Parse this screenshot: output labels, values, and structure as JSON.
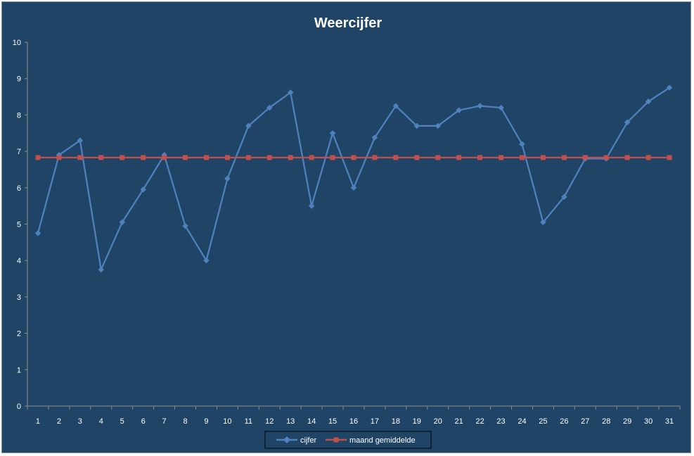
{
  "chart_data": {
    "type": "line",
    "title": "Weercijfer",
    "xlabel": "",
    "ylabel": "",
    "categories": [
      "1",
      "2",
      "3",
      "4",
      "5",
      "6",
      "7",
      "8",
      "9",
      "10",
      "11",
      "12",
      "13",
      "14",
      "15",
      "16",
      "17",
      "18",
      "19",
      "20",
      "21",
      "22",
      "23",
      "24",
      "25",
      "26",
      "27",
      "28",
      "29",
      "30",
      "31"
    ],
    "ylim": [
      0,
      10
    ],
    "yticks": [
      "0",
      "1",
      "2",
      "3",
      "4",
      "5",
      "6",
      "7",
      "8",
      "9",
      "10"
    ],
    "grid": false,
    "legend_position": "bottom",
    "series": [
      {
        "name": "cijfer",
        "color": "#4f81bd",
        "marker": "diamond",
        "values": [
          4.75,
          6.9,
          7.3,
          3.75,
          5.05,
          5.95,
          6.9,
          4.95,
          4.0,
          6.25,
          7.7,
          8.2,
          8.62,
          5.5,
          7.5,
          6.0,
          7.38,
          8.25,
          7.7,
          7.7,
          8.13,
          8.25,
          8.2,
          7.2,
          5.05,
          5.75,
          6.8,
          6.8,
          7.8,
          8.37,
          8.75
        ]
      },
      {
        "name": "maand gemiddelde",
        "color": "#c0504d",
        "marker": "square",
        "values": [
          6.83,
          6.83,
          6.83,
          6.83,
          6.83,
          6.83,
          6.83,
          6.83,
          6.83,
          6.83,
          6.83,
          6.83,
          6.83,
          6.83,
          6.83,
          6.83,
          6.83,
          6.83,
          6.83,
          6.83,
          6.83,
          6.83,
          6.83,
          6.83,
          6.83,
          6.83,
          6.83,
          6.83,
          6.83,
          6.83,
          6.83
        ]
      }
    ]
  }
}
